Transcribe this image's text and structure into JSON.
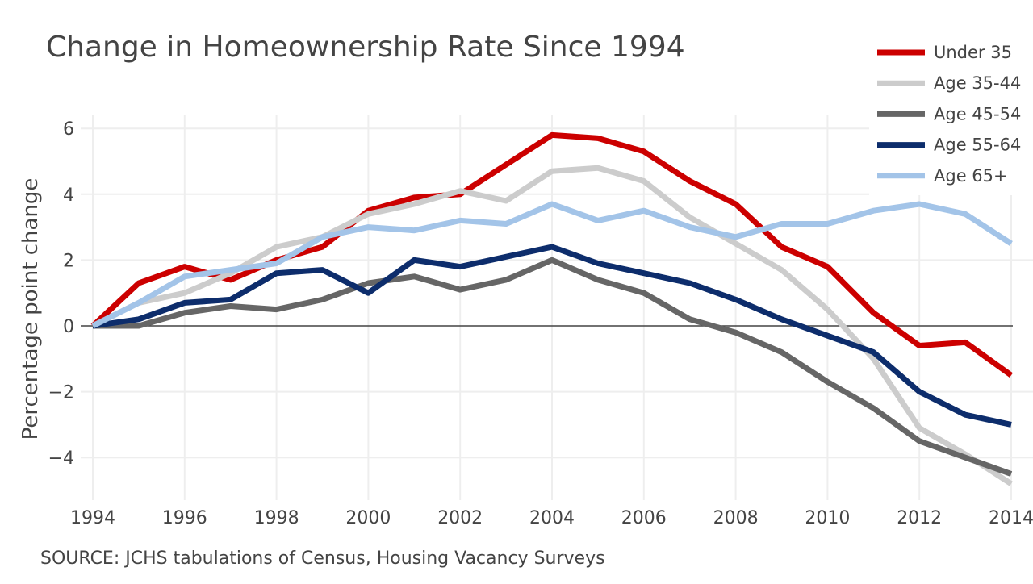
{
  "chart_data": {
    "type": "line",
    "title": "Change in Homeownership Rate Since 1994",
    "ylabel": "Percentage point change",
    "xlabel": "",
    "source": "SOURCE: JCHS tabulations of Census, Housing Vacancy Surveys",
    "x": [
      1994,
      1995,
      1996,
      1997,
      1998,
      1999,
      2000,
      2001,
      2002,
      2003,
      2004,
      2005,
      2006,
      2007,
      2008,
      2009,
      2010,
      2011,
      2012,
      2013,
      2014
    ],
    "xlim": [
      1994,
      2014
    ],
    "ylim": [
      -5.3,
      6.2
    ],
    "xticks": [
      1994,
      1996,
      1998,
      2000,
      2002,
      2004,
      2006,
      2008,
      2010,
      2012,
      2014
    ],
    "yticks": [
      -4,
      -2,
      0,
      2,
      4,
      6
    ],
    "ytick_labels": [
      "−4",
      "−2",
      "0",
      "2",
      "4",
      "6"
    ],
    "grid": true,
    "legend_position": "top-right",
    "series": [
      {
        "name": "Under 35",
        "color": "#cc0000",
        "values": [
          0.0,
          1.3,
          1.8,
          1.4,
          2.0,
          2.4,
          3.5,
          3.9,
          4.0,
          4.9,
          5.8,
          5.7,
          5.3,
          4.4,
          3.7,
          2.4,
          1.8,
          0.4,
          -0.6,
          -0.5,
          -1.5
        ]
      },
      {
        "name": "Age 35-44",
        "color": "#cccccc",
        "values": [
          0.0,
          0.7,
          1.0,
          1.6,
          2.4,
          2.7,
          3.4,
          3.7,
          4.1,
          3.8,
          4.7,
          4.8,
          4.4,
          3.3,
          2.5,
          1.7,
          0.5,
          -1.0,
          -3.1,
          -3.9,
          -4.8
        ]
      },
      {
        "name": "Age 45-54",
        "color": "#666666",
        "values": [
          0.0,
          0.0,
          0.4,
          0.6,
          0.5,
          0.8,
          1.3,
          1.5,
          1.1,
          1.4,
          2.0,
          1.4,
          1.0,
          0.2,
          -0.2,
          -0.8,
          -1.7,
          -2.5,
          -3.5,
          -4.0,
          -4.5
        ]
      },
      {
        "name": "Age 55-64",
        "color": "#0d2d6c",
        "values": [
          0.0,
          0.2,
          0.7,
          0.8,
          1.6,
          1.7,
          1.0,
          2.0,
          1.8,
          2.1,
          2.4,
          1.9,
          1.6,
          1.3,
          0.8,
          0.2,
          -0.3,
          -0.8,
          -2.0,
          -2.7,
          -3.0
        ]
      },
      {
        "name": "Age 65+",
        "color": "#a3c4e8",
        "values": [
          0.0,
          0.7,
          1.5,
          1.7,
          1.9,
          2.7,
          3.0,
          2.9,
          3.2,
          3.1,
          3.7,
          3.2,
          3.5,
          3.0,
          2.7,
          3.1,
          3.1,
          3.5,
          3.7,
          3.4,
          2.5
        ]
      }
    ]
  }
}
